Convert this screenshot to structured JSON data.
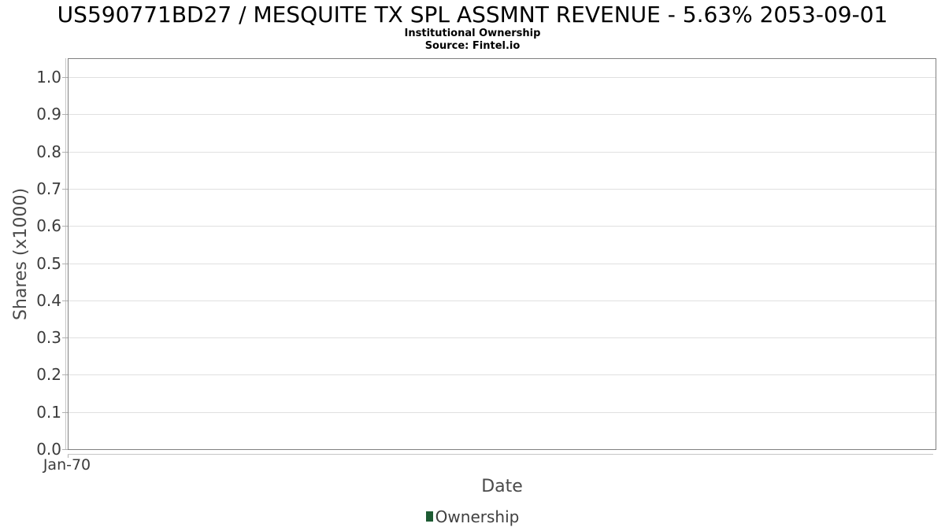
{
  "header": {
    "title": "US590771BD27 / MESQUITE TX SPL ASSMNT REVENUE - 5.63% 2053-09-01",
    "subtitle": "Institutional Ownership",
    "source": "Source: Fintel.io"
  },
  "colors": {
    "accent": "#1d5b33",
    "grid": "#e0e0e0",
    "plot_border": "#808080",
    "axis_line": "#c6c6c6",
    "tick_mark": "#b0b0b0",
    "tick_text": "#3c3c3c",
    "label_text": "#4a4a4a",
    "title_text": "#000000"
  },
  "chart_data": {
    "type": "line",
    "title": "US590771BD27 / MESQUITE TX SPL ASSMNT REVENUE - 5.63% 2053-09-01",
    "subtitle": "Institutional Ownership",
    "source": "Source: Fintel.io",
    "xlabel": "Date",
    "ylabel": "Shares (x1000)",
    "x_ticks": [
      "Jan-70"
    ],
    "y_ticks": [
      "0.0",
      "0.1",
      "0.2",
      "0.3",
      "0.4",
      "0.5",
      "0.6",
      "0.7",
      "0.8",
      "0.9",
      "1.0"
    ],
    "ylim": [
      0.0,
      1.05
    ],
    "grid": "horizontal-only",
    "legend_position": "bottom-center",
    "series": [
      {
        "name": "Ownership",
        "color": "#1d5b33",
        "x": [],
        "values": []
      }
    ]
  }
}
